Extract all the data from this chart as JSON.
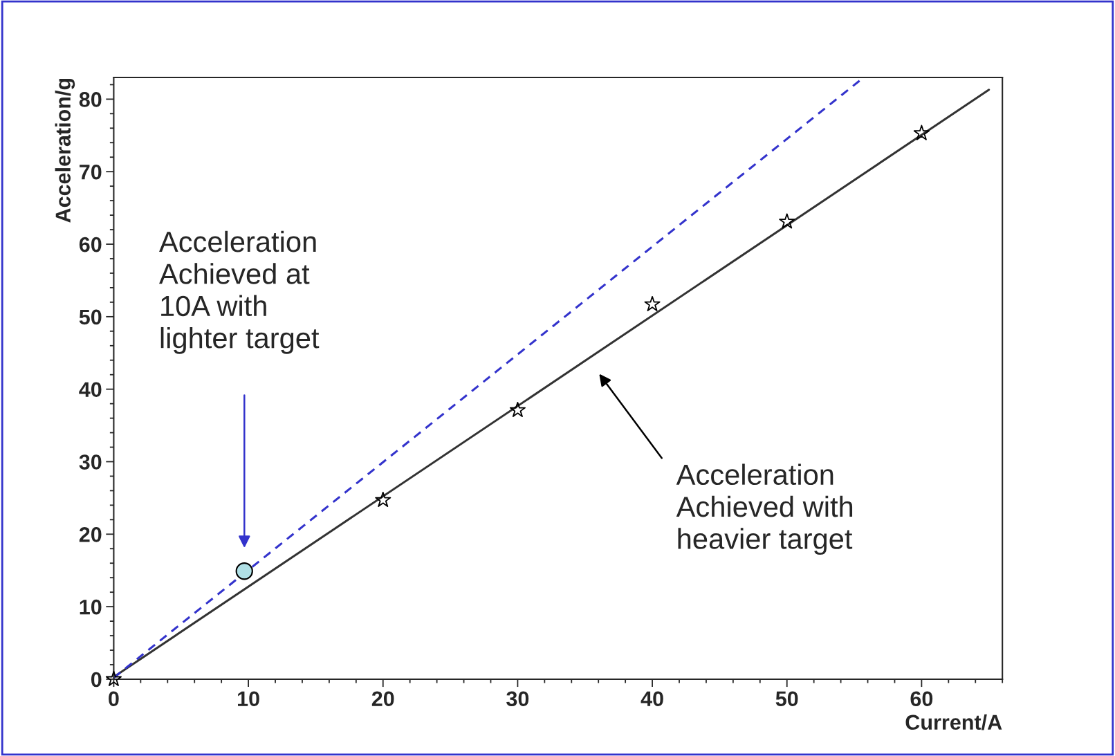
{
  "chart_data": {
    "type": "scatter",
    "xlabel": "Current/A",
    "ylabel": "Acceleration/g",
    "xlim": [
      0,
      66
    ],
    "ylim": [
      0,
      83
    ],
    "xticks": [
      0,
      10,
      20,
      30,
      40,
      50,
      60
    ],
    "yticks": [
      0,
      10,
      20,
      30,
      40,
      50,
      60,
      70,
      80
    ],
    "grid": false,
    "legend": false,
    "series": [
      {
        "type": "line",
        "color": "#333333",
        "x": [
          0,
          65
        ],
        "values": [
          0.3,
          81.3
        ],
        "line_style": "solid",
        "marker": "none"
      },
      {
        "type": "line",
        "color": "#3333cc",
        "x": [
          0,
          55.5
        ],
        "values": [
          0.2,
          82.7
        ],
        "line_style": "dashed",
        "marker": "none"
      },
      {
        "color": "#000000",
        "x": [
          0,
          20,
          30,
          40,
          50,
          60
        ],
        "values": [
          0,
          24.7,
          37.1,
          51.7,
          63.1,
          75.3
        ],
        "marker": "star"
      },
      {
        "color": "#b0e0e6",
        "x": [
          9.7
        ],
        "values": [
          14.9
        ],
        "marker": "circle"
      }
    ],
    "annotations": [
      "Acceleration\nAchieved at\n10A with\nlighter target",
      "Acceleration\nAchieved with\nheavier target"
    ]
  }
}
